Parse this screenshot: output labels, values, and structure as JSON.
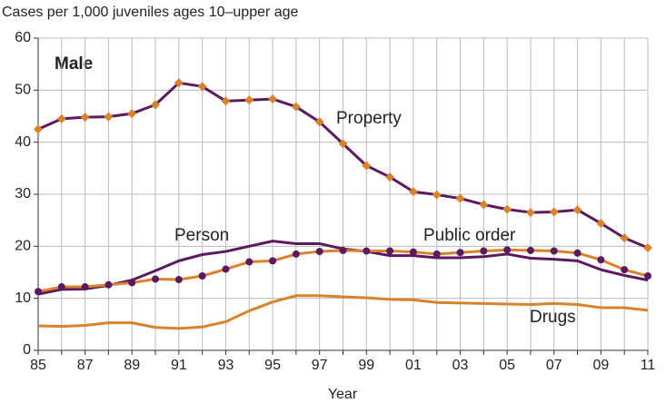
{
  "chart_data": {
    "type": "line",
    "title": "Cases per 1,000 juveniles ages 10–upper age",
    "annotation": "Male",
    "x_label": "Year",
    "categories": [
      "85",
      null,
      "87",
      null,
      "89",
      null,
      "91",
      null,
      "93",
      null,
      "95",
      null,
      "97",
      null,
      "99",
      null,
      "01",
      null,
      "03",
      null,
      "05",
      null,
      "07",
      null,
      "09",
      null,
      "11"
    ],
    "ylim": [
      0,
      60
    ],
    "yticks": [
      0,
      10,
      20,
      30,
      40,
      50,
      60
    ],
    "grid": true,
    "series": [
      {
        "name": "Property",
        "color": "#5c1a5e",
        "marker": "diamond",
        "marker_color": "#d9822b",
        "values": [
          42.5,
          44.5,
          44.8,
          44.9,
          45.5,
          47.2,
          51.4,
          50.7,
          47.9,
          48.1,
          48.3,
          46.8,
          43.9,
          39.7,
          35.5,
          33.3,
          30.5,
          29.9,
          29.2,
          28.0,
          27.1,
          26.5,
          26.6,
          27.0,
          24.4,
          21.6,
          19.7
        ]
      },
      {
        "name": "Person",
        "color": "#5c1a5e",
        "values": [
          10.8,
          11.7,
          11.8,
          12.5,
          13.5,
          15.3,
          17.2,
          18.4,
          19.0,
          20.0,
          21.0,
          20.5,
          20.5,
          19.5,
          19.0,
          18.2,
          18.2,
          17.8,
          17.8,
          18.0,
          18.5,
          17.7,
          17.5,
          17.2,
          15.5,
          14.4,
          13.5
        ]
      },
      {
        "name": "Public order",
        "color": "#d9822b",
        "marker": "circle",
        "marker_color": "#5c1a5e",
        "values": [
          11.3,
          12.2,
          12.2,
          12.6,
          13.0,
          13.7,
          13.6,
          14.3,
          15.6,
          17.0,
          17.2,
          18.5,
          19.0,
          19.2,
          19.1,
          19.1,
          18.9,
          18.5,
          18.8,
          19.1,
          19.3,
          19.2,
          19.1,
          18.7,
          17.4,
          15.5,
          14.3
        ]
      },
      {
        "name": "Drugs",
        "color": "#d9822b",
        "values": [
          4.7,
          4.6,
          4.8,
          5.3,
          5.3,
          4.4,
          4.2,
          4.5,
          5.5,
          7.6,
          9.3,
          10.5,
          10.5,
          10.3,
          10.1,
          9.8,
          9.7,
          9.2,
          9.1,
          9.0,
          8.9,
          8.8,
          9.0,
          8.8,
          8.2,
          8.2,
          7.7
        ]
      }
    ]
  }
}
